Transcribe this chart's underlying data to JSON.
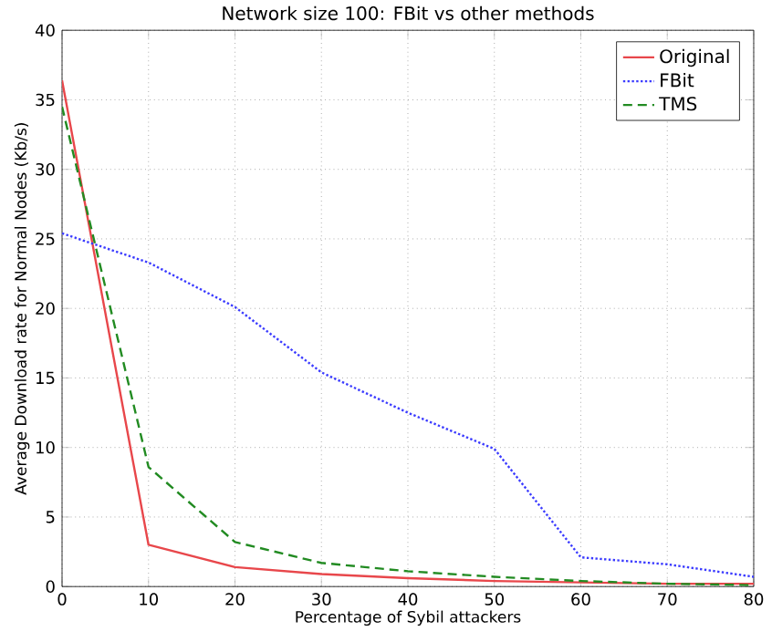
{
  "chart_data": {
    "type": "line",
    "title": "Network size 100: FBit vs other methods",
    "xlabel": "Percentage of Sybil attackers",
    "ylabel": "Average Download rate for Normal Nodes (Kb/s)",
    "x": [
      0,
      10,
      20,
      30,
      40,
      50,
      60,
      70,
      80
    ],
    "series": [
      {
        "name": "Original",
        "color": "#e8474b",
        "line_style": "solid",
        "values": [
          36.4,
          3.0,
          1.4,
          0.9,
          0.6,
          0.4,
          0.3,
          0.2,
          0.2
        ]
      },
      {
        "name": "FBit",
        "color": "#3b3bff",
        "line_style": "dotted",
        "values": [
          25.4,
          23.3,
          20.1,
          15.4,
          12.5,
          9.9,
          2.1,
          1.6,
          0.7
        ]
      },
      {
        "name": "TMS",
        "color": "#228b22",
        "line_style": "dashed",
        "values": [
          34.5,
          8.6,
          3.2,
          1.7,
          1.1,
          0.7,
          0.4,
          0.2,
          0.1
        ]
      }
    ],
    "xlim": [
      0,
      80
    ],
    "ylim": [
      0,
      40
    ],
    "xticks": [
      0,
      10,
      20,
      30,
      40,
      50,
      60,
      70,
      80
    ],
    "yticks": [
      0,
      5,
      10,
      15,
      20,
      25,
      30,
      35,
      40
    ],
    "grid": true,
    "legend": "top right"
  }
}
